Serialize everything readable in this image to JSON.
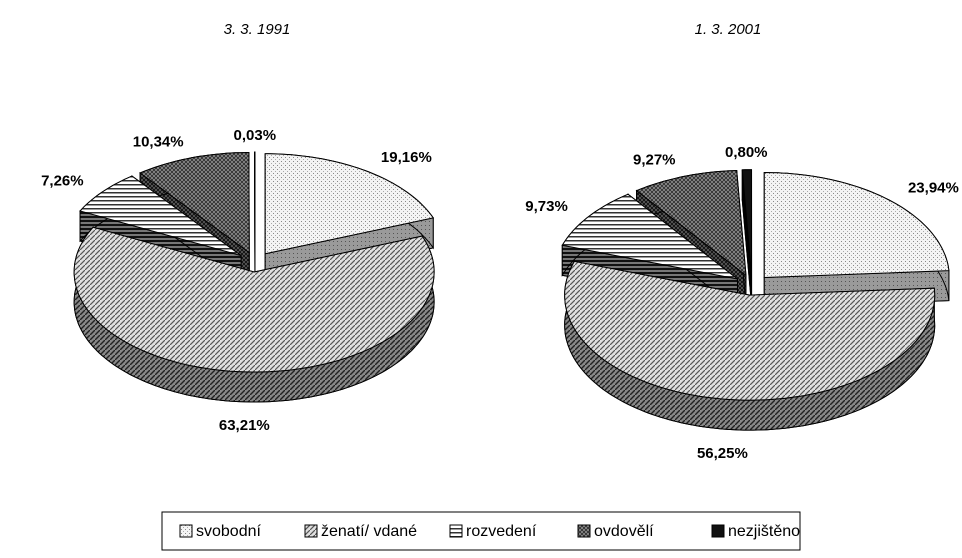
{
  "chart_data": [
    {
      "type": "pie",
      "title": "3. 3. 1991",
      "categories": [
        "svobodní",
        "ženatí/ vdané",
        "rozvedení",
        "ovdovělí",
        "nezjištěno"
      ],
      "values": [
        19.16,
        63.21,
        7.26,
        10.34,
        0.03
      ],
      "value_labels": [
        "19,16%",
        "63,21%",
        "7,26%",
        "10,34%",
        "0,03%"
      ]
    },
    {
      "type": "pie",
      "title": "1. 3. 2001",
      "categories": [
        "svobodní",
        "ženatí/ vdané",
        "rozvedení",
        "ovdovělí",
        "nezjištěno"
      ],
      "values": [
        23.94,
        56.25,
        9.73,
        9.27,
        0.8
      ],
      "value_labels": [
        "23,94%",
        "56,25%",
        "9,73%",
        "9,27%",
        "0,80%"
      ]
    }
  ]
}
